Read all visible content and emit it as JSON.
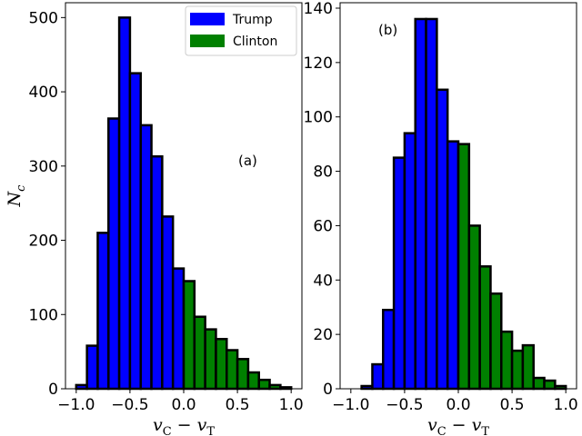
{
  "chart_data": [
    {
      "type": "bar",
      "panel_label": "(a)",
      "ylabel": "N_c",
      "xlabel": "v_C − v_T",
      "xlim": [
        -1.1,
        1.1
      ],
      "ylim": [
        0,
        520
      ],
      "xticks": [
        -1.0,
        -0.5,
        0.0,
        0.5,
        1.0
      ],
      "xtick_labels": [
        "−1.0",
        "−0.5",
        "0.0",
        "0.5",
        "1.0"
      ],
      "yticks": [
        0,
        100,
        200,
        300,
        400,
        500
      ],
      "ytick_labels": [
        "0",
        "100",
        "200",
        "300",
        "400",
        "500"
      ],
      "bin_width": 0.1,
      "bin_starts": [
        -1.0,
        -0.9,
        -0.8,
        -0.7,
        -0.6,
        -0.5,
        -0.4,
        -0.3,
        -0.2,
        -0.1,
        0.0,
        0.1,
        0.2,
        0.3,
        0.4,
        0.5,
        0.6,
        0.7,
        0.8,
        0.9
      ],
      "values": [
        5,
        58,
        210,
        364,
        500,
        425,
        355,
        313,
        232,
        162,
        145,
        97,
        80,
        67,
        52,
        40,
        22,
        12,
        5,
        2
      ],
      "series": [
        {
          "name": "Trump",
          "color": "#0000ff",
          "bins": "x < 0"
        },
        {
          "name": "Clinton",
          "color": "#008000",
          "bins": "x >= 0"
        }
      ],
      "legend": {
        "placement": "top-right",
        "entries": [
          {
            "label": "Trump",
            "color": "#0000ff"
          },
          {
            "label": "Clinton",
            "color": "#008000"
          }
        ]
      },
      "grid": false
    },
    {
      "type": "bar",
      "panel_label": "(b)",
      "ylabel": "",
      "xlabel": "v_C − v_T",
      "xlim": [
        -1.1,
        1.1
      ],
      "ylim": [
        0,
        142
      ],
      "xticks": [
        -1.0,
        -0.5,
        0.0,
        0.5,
        1.0
      ],
      "xtick_labels": [
        "−1.0",
        "−0.5",
        "0.0",
        "0.5",
        "1.0"
      ],
      "yticks": [
        0,
        20,
        40,
        60,
        80,
        100,
        120,
        140
      ],
      "ytick_labels": [
        "0",
        "20",
        "40",
        "60",
        "80",
        "100",
        "120",
        "140"
      ],
      "bin_width": 0.1,
      "bin_starts": [
        -1.0,
        -0.9,
        -0.8,
        -0.7,
        -0.6,
        -0.5,
        -0.4,
        -0.3,
        -0.2,
        -0.1,
        0.0,
        0.1,
        0.2,
        0.3,
        0.4,
        0.5,
        0.6,
        0.7,
        0.8,
        0.9
      ],
      "values": [
        0,
        1,
        9,
        29,
        85,
        94,
        136,
        136,
        110,
        91,
        90,
        60,
        45,
        35,
        21,
        14,
        16,
        4,
        3,
        1
      ],
      "series": [
        {
          "name": "Trump",
          "color": "#0000ff",
          "bins": "x < 0"
        },
        {
          "name": "Clinton",
          "color": "#008000",
          "bins": "x >= 0"
        }
      ],
      "grid": false
    }
  ]
}
